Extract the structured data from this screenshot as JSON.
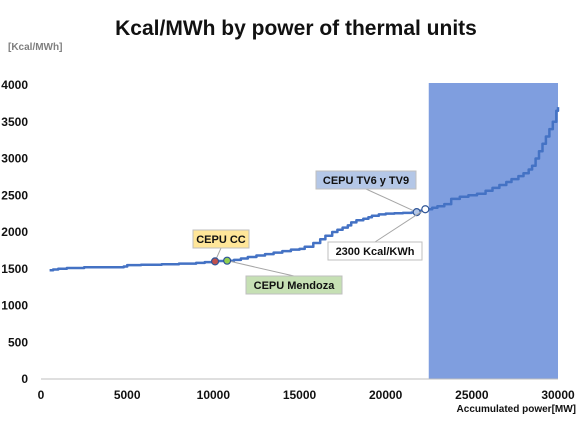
{
  "chart_data": {
    "type": "line",
    "title": "Kcal/MWh by power of thermal units",
    "ylabel": "[Kcal/MWh]",
    "xlabel": "Accumulated power[MW]",
    "xlim": [
      0,
      30000
    ],
    "ylim": [
      0,
      4000
    ],
    "xticks": [
      0,
      5000,
      10000,
      15000,
      20000,
      25000,
      30000
    ],
    "yticks": [
      0,
      500,
      1000,
      1500,
      2000,
      2500,
      3000,
      3500,
      4000
    ],
    "grid": false,
    "line_color": "#4472c4",
    "highlight_region": {
      "x_from": 22500,
      "x_to": 30000,
      "color": "#7f9edf"
    },
    "series": [
      {
        "x": [
          500,
          700,
          1000,
          1500,
          2500,
          3500,
          4800,
          5000,
          5800,
          7000,
          8000,
          9000,
          9500,
          10000,
          10300,
          10800,
          11200,
          11600,
          12000,
          12500,
          13000,
          13500,
          14000,
          14500,
          15000,
          15300,
          15800,
          16200,
          16500,
          16900,
          17200,
          17500,
          17800,
          18000,
          18300,
          18700,
          19000,
          19200,
          19600,
          20000,
          20500,
          21000,
          21500,
          21800,
          22000,
          22300,
          22700,
          23000,
          23400,
          23800,
          24300,
          24800,
          25300,
          25800,
          26200,
          26600,
          27000,
          27300,
          27700,
          28000,
          28300,
          28500,
          28700,
          28900,
          29100,
          29300,
          29500,
          29700,
          29900,
          30000
        ],
        "y": [
          1480,
          1490,
          1500,
          1510,
          1520,
          1520,
          1530,
          1550,
          1555,
          1560,
          1570,
          1580,
          1590,
          1600,
          1605,
          1610,
          1620,
          1640,
          1660,
          1680,
          1700,
          1720,
          1740,
          1760,
          1770,
          1800,
          1850,
          1900,
          1950,
          2000,
          2030,
          2060,
          2090,
          2130,
          2160,
          2180,
          2200,
          2220,
          2240,
          2250,
          2255,
          2260,
          2265,
          2270,
          2290,
          2310,
          2330,
          2350,
          2380,
          2450,
          2480,
          2500,
          2520,
          2560,
          2600,
          2640,
          2680,
          2720,
          2760,
          2800,
          2850,
          2900,
          3000,
          3100,
          3200,
          3300,
          3400,
          3500,
          3650,
          3700
        ]
      }
    ],
    "annotations": [
      {
        "text": "CEPU CC",
        "x": 10100,
        "y": 1600,
        "box_color": "#ffe699",
        "marker_color": "#c0504d"
      },
      {
        "text": "CEPU Mendoza",
        "x": 10800,
        "y": 1610,
        "box_color": "#c6e0b4",
        "marker_color": "#92d050"
      },
      {
        "text": "CEPU TV6 y TV9",
        "x": 21800,
        "y": 2270,
        "box_color": "#b4c7e7",
        "marker_color": "#b4c7e7"
      },
      {
        "text": "2300 Kcal/KWh",
        "x": 22300,
        "y": 2310,
        "box_color": "#ffffff",
        "marker_color": "#ffffff"
      }
    ]
  }
}
